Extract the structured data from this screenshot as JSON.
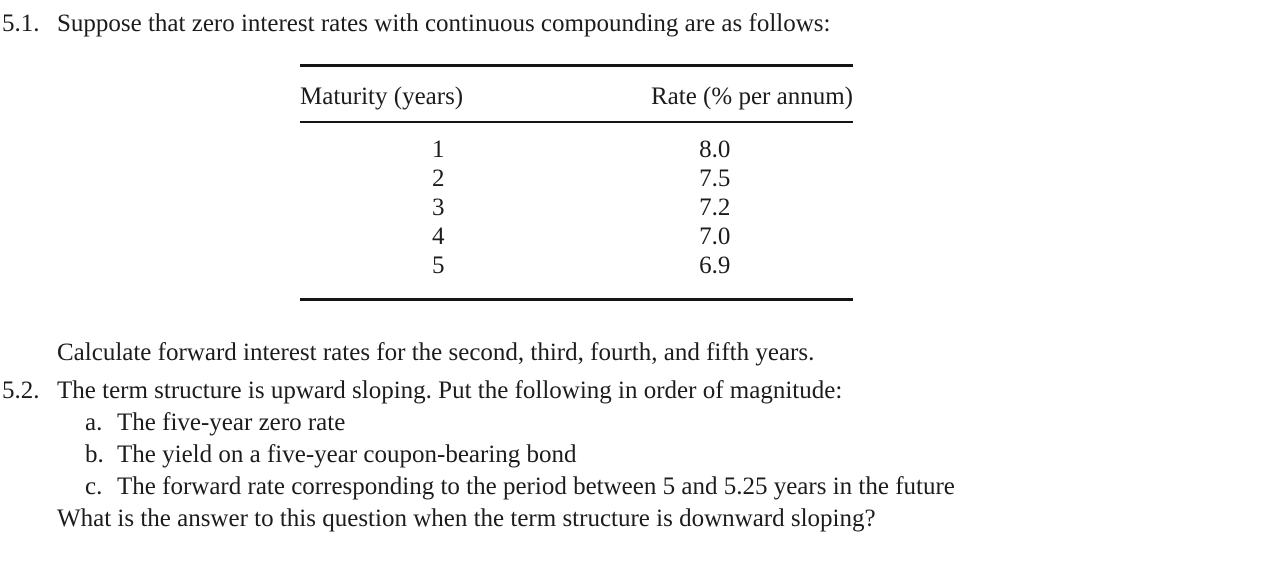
{
  "page": {
    "background": "#ffffff",
    "text_color": "#1c1c1c",
    "rule_color": "#151515"
  },
  "problem_5_1": {
    "number": "5.1.",
    "intro": "Suppose that zero interest rates with continuous compounding are as follows:",
    "table": {
      "headers": {
        "maturity": "Maturity (years)",
        "rate": "Rate (% per annum)"
      },
      "rows": [
        {
          "maturity": "1",
          "rate": "8.0"
        },
        {
          "maturity": "2",
          "rate": "7.5"
        },
        {
          "maturity": "3",
          "rate": "7.2"
        },
        {
          "maturity": "4",
          "rate": "7.0"
        },
        {
          "maturity": "5",
          "rate": "6.9"
        }
      ]
    },
    "question": "Calculate forward interest rates for the second, third, fourth, and fifth years."
  },
  "problem_5_2": {
    "number": "5.2.",
    "intro": "The term structure is upward sloping. Put the following in order of magnitude:",
    "items": [
      {
        "label": "a.",
        "text": "The five-year zero rate"
      },
      {
        "label": "b.",
        "text": "The yield on a five-year coupon-bearing bond"
      },
      {
        "label": "c.",
        "text": "The forward rate corresponding to the period between 5 and 5.25 years in the future"
      }
    ],
    "question": "What is the answer to this question when the term structure is downward sloping?"
  }
}
